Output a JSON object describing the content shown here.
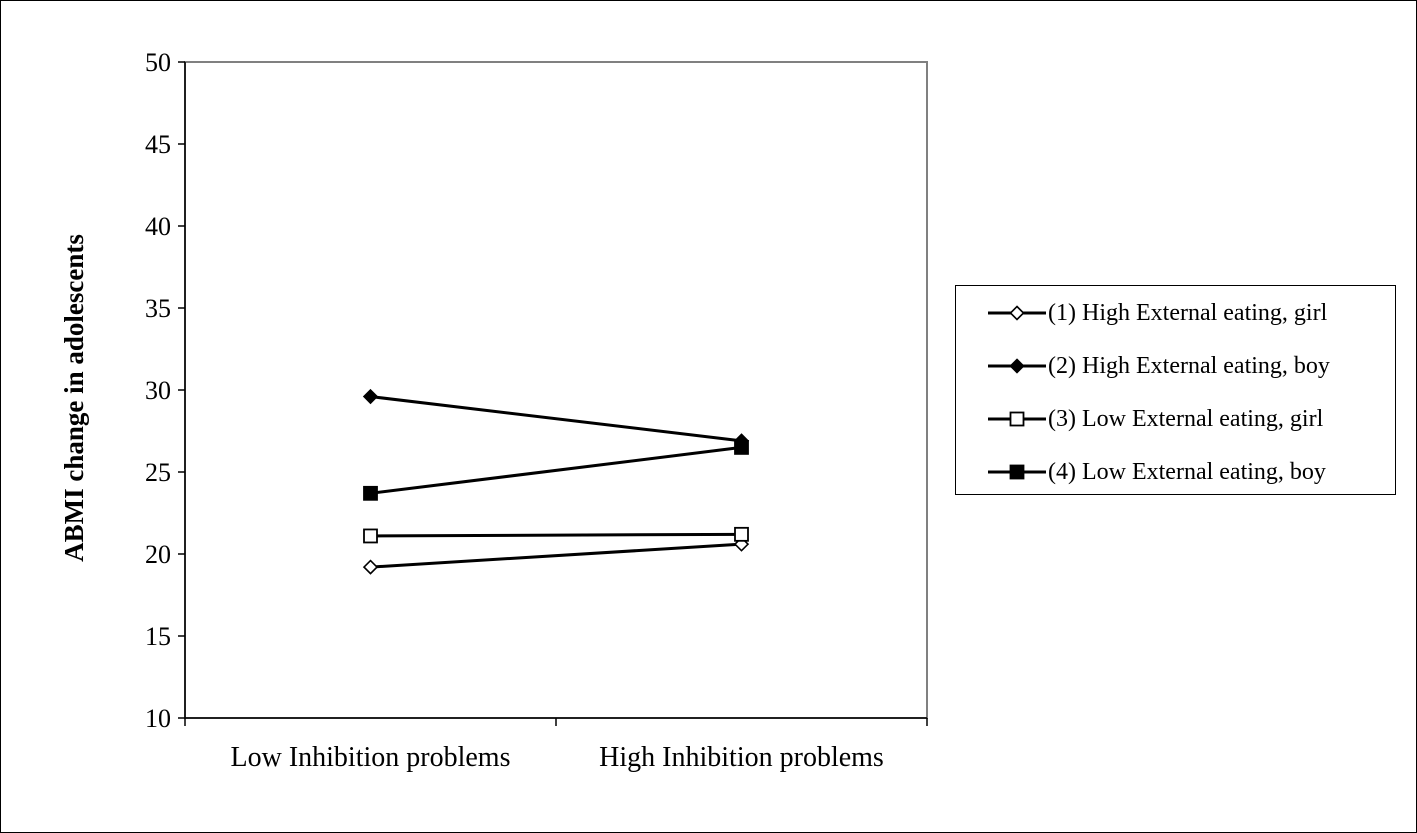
{
  "chart_data": {
    "type": "line",
    "title": "",
    "xlabel": "",
    "ylabel": "ABMI change  in adolescents",
    "categories": [
      "Low Inhibition problems",
      "High Inhibition problems"
    ],
    "ylim": [
      10,
      50
    ],
    "yticks": [
      10,
      15,
      20,
      25,
      30,
      35,
      40,
      45,
      50
    ],
    "grid": false,
    "legend_position": "right",
    "series": [
      {
        "name": "(1) High External eating, girl",
        "marker": "diamond",
        "filled": false,
        "values": [
          19.2,
          20.6
        ]
      },
      {
        "name": "(2) High External eating, boy",
        "marker": "diamond",
        "filled": true,
        "values": [
          29.6,
          26.9
        ]
      },
      {
        "name": "(3) Low External eating, girl",
        "marker": "square",
        "filled": false,
        "values": [
          21.1,
          21.2
        ]
      },
      {
        "name": "(4) Low External eating, boy",
        "marker": "square",
        "filled": true,
        "values": [
          23.7,
          26.5
        ]
      }
    ]
  }
}
